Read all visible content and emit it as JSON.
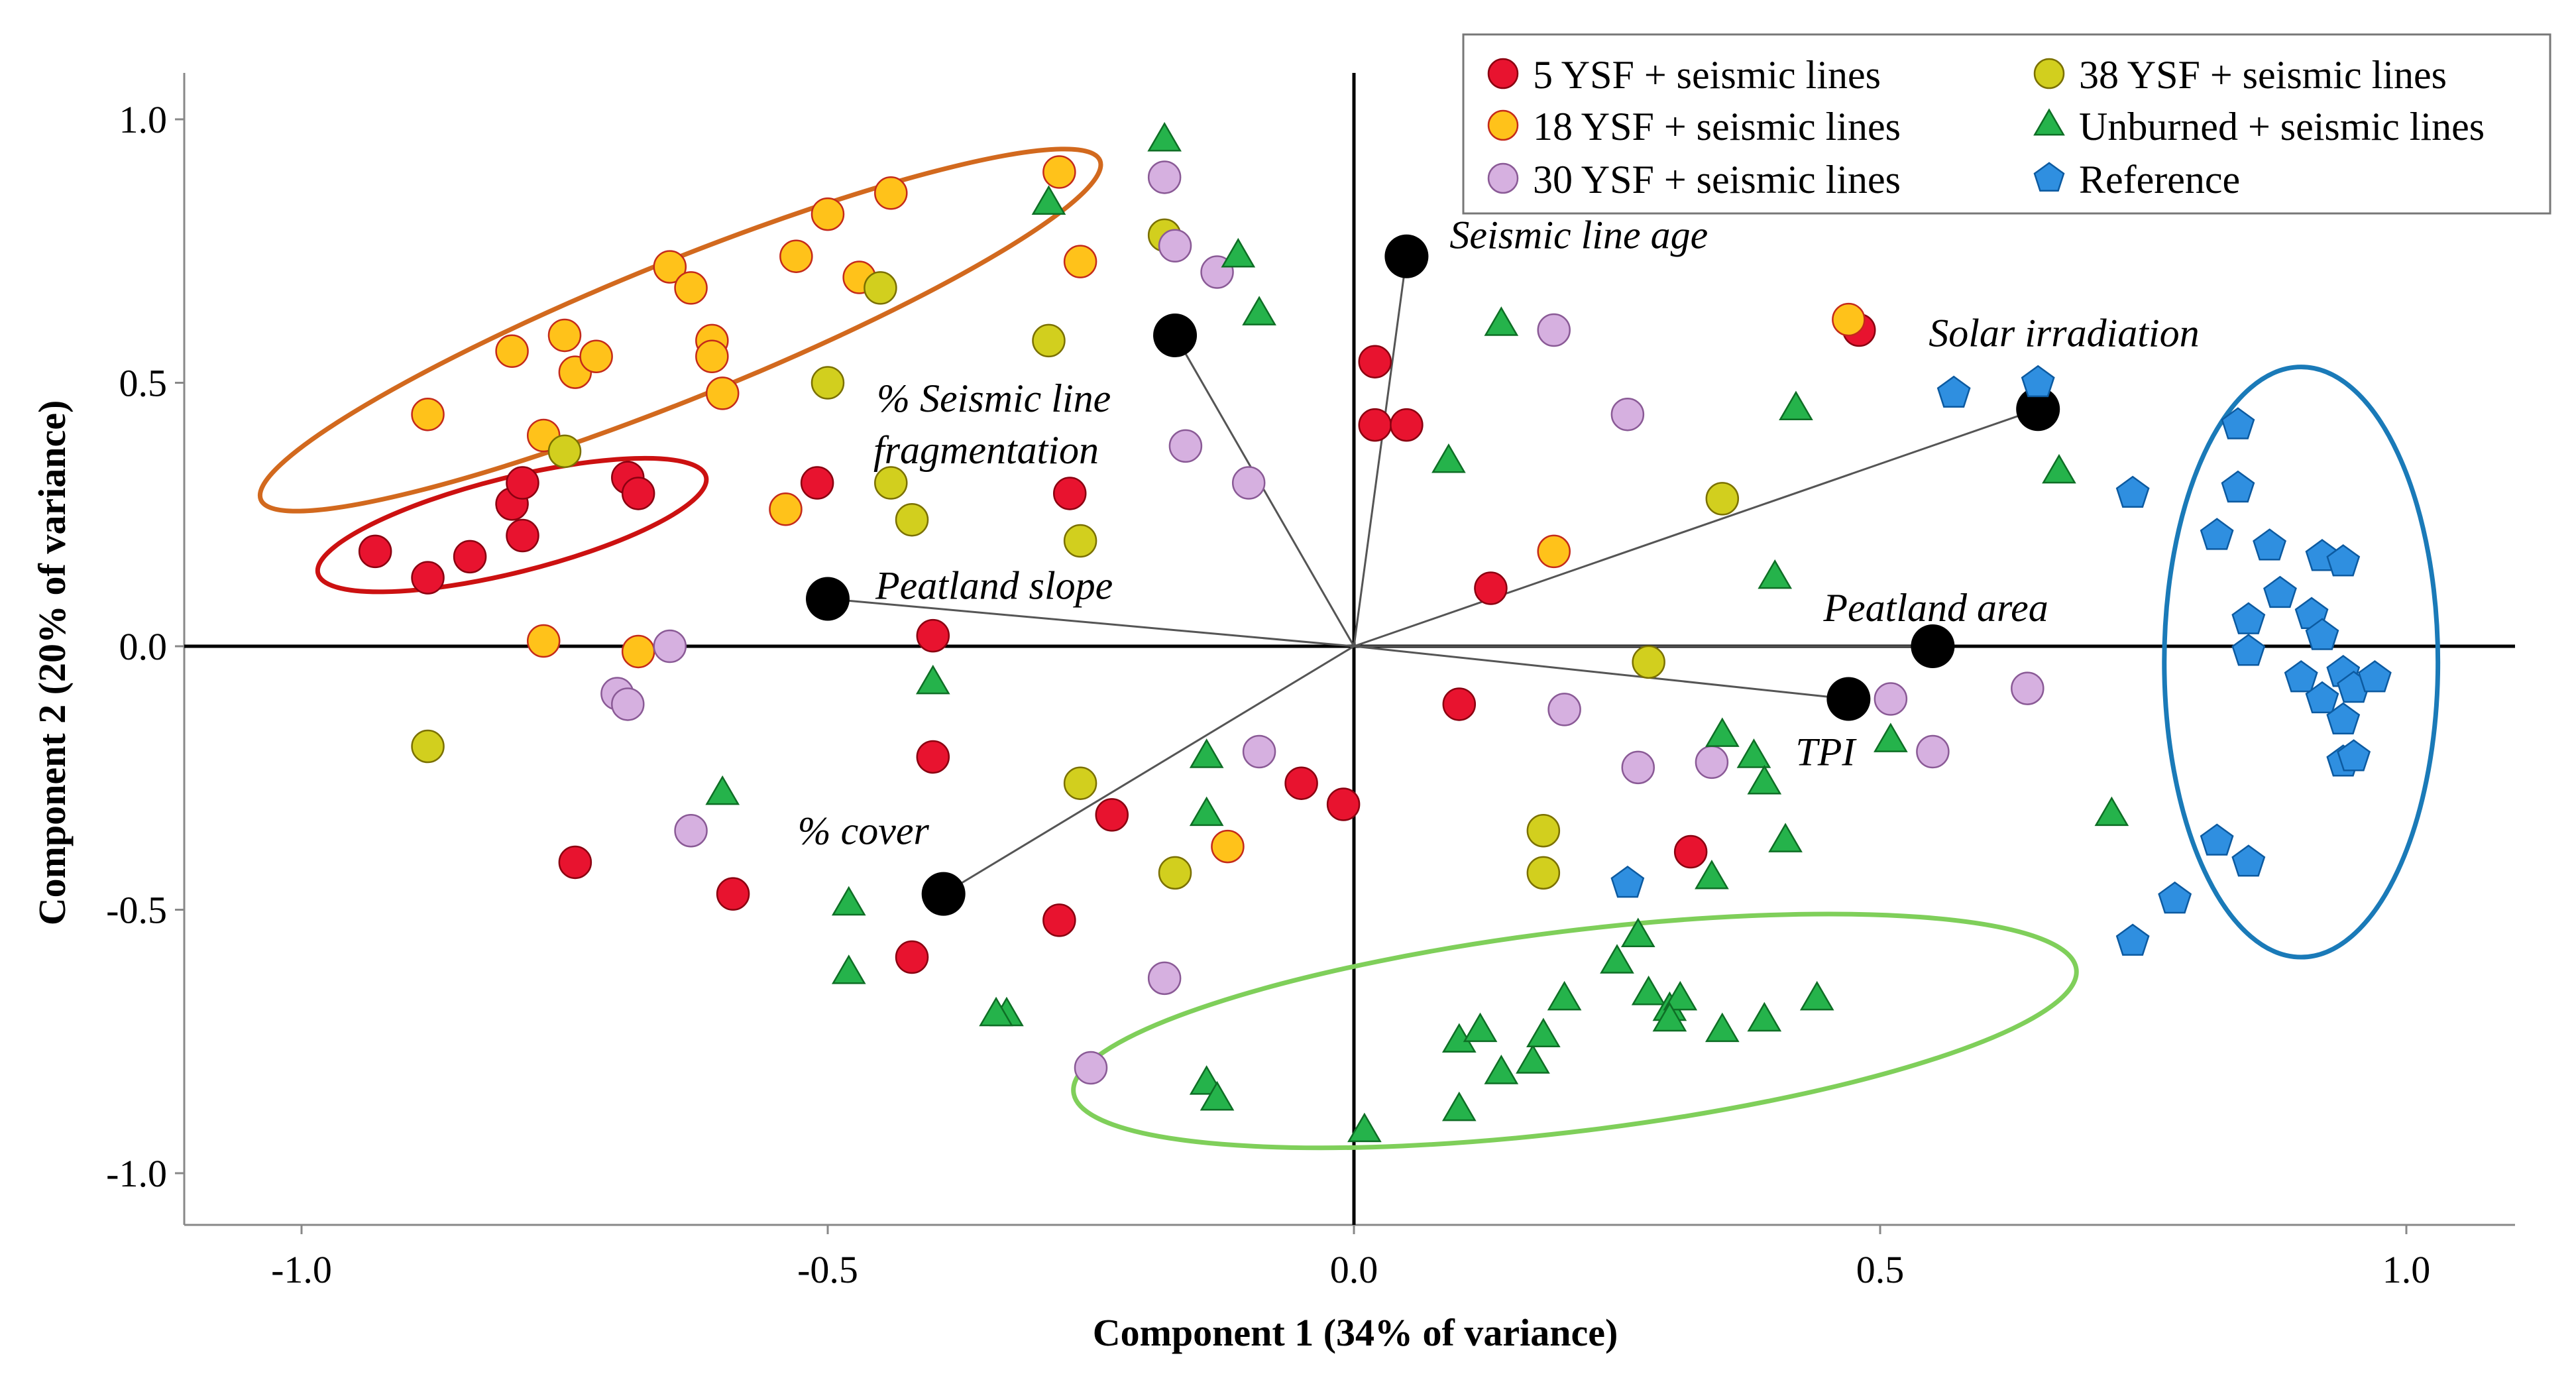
{
  "chart_data": {
    "type": "scatter",
    "title": "",
    "xlabel": "Component 1 (34% of variance)",
    "ylabel": "Component 2 (20% of variance)",
    "xlim": [
      -1.1,
      1.1
    ],
    "ylim": [
      -1.1,
      1.1
    ],
    "xticks": [
      -1.0,
      -0.5,
      0.0,
      0.5,
      1.0
    ],
    "yticks": [
      -1.0,
      -0.5,
      0.0,
      0.5,
      1.0
    ],
    "xtick_labels": [
      "-1.0",
      "-0.5",
      "0.0",
      "0.5",
      "1.0"
    ],
    "ytick_labels": [
      "-1.0",
      "-0.5",
      "0.0",
      "0.5",
      "1.0"
    ],
    "grid": false,
    "legend_position": "top-right",
    "series": [
      {
        "name": "5 YSF +  seismic lines",
        "marker": "circle",
        "color": "#e8132f",
        "edge": "#8a0010",
        "points": [
          [
            -0.93,
            0.18
          ],
          [
            -0.88,
            0.13
          ],
          [
            -0.84,
            0.17
          ],
          [
            -0.8,
            0.27
          ],
          [
            -0.79,
            0.31
          ],
          [
            -0.79,
            0.21
          ],
          [
            -0.69,
            0.32
          ],
          [
            -0.68,
            0.29
          ],
          [
            -0.74,
            -0.41
          ],
          [
            -0.59,
            -0.47
          ],
          [
            -0.51,
            0.31
          ],
          [
            -0.4,
            0.02
          ],
          [
            -0.4,
            -0.21
          ],
          [
            -0.42,
            -0.59
          ],
          [
            -0.27,
            0.29
          ],
          [
            -0.28,
            -0.52
          ],
          [
            -0.23,
            -0.32
          ],
          [
            -0.05,
            -0.26
          ],
          [
            -0.01,
            -0.3
          ],
          [
            0.02,
            0.54
          ],
          [
            0.02,
            0.42
          ],
          [
            0.05,
            0.42
          ],
          [
            0.13,
            0.11
          ],
          [
            0.1,
            -0.11
          ],
          [
            0.32,
            -0.39
          ],
          [
            0.48,
            0.6
          ]
        ]
      },
      {
        "name": "18 YSF + seismic lines",
        "marker": "circle",
        "color": "#ffc21a",
        "edge": "#c42a1a",
        "points": [
          [
            -0.88,
            0.44
          ],
          [
            -0.8,
            0.56
          ],
          [
            -0.75,
            0.59
          ],
          [
            -0.74,
            0.52
          ],
          [
            -0.72,
            0.55
          ],
          [
            -0.65,
            0.72
          ],
          [
            -0.63,
            0.68
          ],
          [
            -0.61,
            0.58
          ],
          [
            -0.61,
            0.55
          ],
          [
            -0.6,
            0.48
          ],
          [
            -0.53,
            0.74
          ],
          [
            -0.5,
            0.82
          ],
          [
            -0.47,
            0.7
          ],
          [
            -0.44,
            0.86
          ],
          [
            -0.77,
            0.4
          ],
          [
            -0.77,
            0.01
          ],
          [
            -0.68,
            -0.01
          ],
          [
            -0.54,
            0.26
          ],
          [
            -0.28,
            0.9
          ],
          [
            -0.26,
            0.73
          ],
          [
            -0.12,
            -0.38
          ],
          [
            0.19,
            0.18
          ],
          [
            0.47,
            0.62
          ]
        ]
      },
      {
        "name": "38 YSF + seismic lines",
        "marker": "circle",
        "color": "#d2cf1e",
        "edge": "#7a7000",
        "points": [
          [
            -0.88,
            -0.19
          ],
          [
            -0.75,
            0.37
          ],
          [
            -0.5,
            0.5
          ],
          [
            -0.45,
            0.68
          ],
          [
            -0.44,
            0.31
          ],
          [
            -0.42,
            0.24
          ],
          [
            -0.29,
            0.58
          ],
          [
            -0.26,
            0.2
          ],
          [
            -0.26,
            -0.26
          ],
          [
            -0.18,
            0.78
          ],
          [
            -0.17,
            -0.43
          ],
          [
            0.18,
            -0.35
          ],
          [
            0.18,
            -0.43
          ],
          [
            0.28,
            -0.03
          ],
          [
            0.35,
            0.28
          ]
        ]
      },
      {
        "name": "30 YSF + seismic lines",
        "marker": "circle",
        "color": "#d6b0e0",
        "edge": "#8a5a96",
        "points": [
          [
            -0.7,
            -0.09
          ],
          [
            -0.69,
            -0.11
          ],
          [
            -0.65,
            0.0
          ],
          [
            -0.63,
            -0.35
          ],
          [
            -0.18,
            0.89
          ],
          [
            -0.17,
            0.76
          ],
          [
            -0.13,
            0.71
          ],
          [
            -0.1,
            0.31
          ],
          [
            -0.16,
            0.38
          ],
          [
            -0.09,
            -0.2
          ],
          [
            -0.18,
            -0.63
          ],
          [
            -0.25,
            -0.8
          ],
          [
            0.19,
            0.6
          ],
          [
            0.2,
            -0.12
          ],
          [
            0.26,
            0.44
          ],
          [
            0.27,
            -0.23
          ],
          [
            0.34,
            -0.22
          ],
          [
            0.51,
            -0.1
          ],
          [
            0.55,
            -0.2
          ],
          [
            0.64,
            -0.08
          ]
        ]
      },
      {
        "name": "Unburned + seismic lines",
        "marker": "triangle",
        "color": "#25b34b",
        "edge": "#0e6e25",
        "points": [
          [
            -0.18,
            0.96
          ],
          [
            -0.29,
            0.84
          ],
          [
            -0.11,
            0.74
          ],
          [
            -0.09,
            0.63
          ],
          [
            0.14,
            0.61
          ],
          [
            0.09,
            0.35
          ],
          [
            0.42,
            0.45
          ],
          [
            0.67,
            0.33
          ],
          [
            0.4,
            0.13
          ],
          [
            0.51,
            -0.18
          ],
          [
            0.35,
            -0.17
          ],
          [
            0.38,
            -0.21
          ],
          [
            0.39,
            -0.26
          ],
          [
            0.41,
            -0.37
          ],
          [
            0.34,
            -0.44
          ],
          [
            0.72,
            -0.32
          ],
          [
            -0.4,
            -0.07
          ],
          [
            -0.6,
            -0.28
          ],
          [
            -0.48,
            -0.49
          ],
          [
            -0.48,
            -0.62
          ],
          [
            -0.33,
            -0.7
          ],
          [
            -0.34,
            -0.7
          ],
          [
            -0.14,
            -0.21
          ],
          [
            -0.14,
            -0.32
          ],
          [
            -0.14,
            -0.83
          ],
          [
            -0.13,
            -0.86
          ],
          [
            0.01,
            -0.92
          ],
          [
            0.1,
            -0.75
          ],
          [
            0.1,
            -0.88
          ],
          [
            0.12,
            -0.73
          ],
          [
            0.14,
            -0.81
          ],
          [
            0.17,
            -0.79
          ],
          [
            0.18,
            -0.74
          ],
          [
            0.2,
            -0.67
          ],
          [
            0.25,
            -0.6
          ],
          [
            0.27,
            -0.55
          ],
          [
            0.28,
            -0.66
          ],
          [
            0.3,
            -0.69
          ],
          [
            0.31,
            -0.67
          ],
          [
            0.3,
            -0.71
          ],
          [
            0.35,
            -0.73
          ],
          [
            0.39,
            -0.71
          ],
          [
            0.44,
            -0.67
          ]
        ]
      },
      {
        "name": "Reference",
        "marker": "pentagon",
        "color": "#2f8fe0",
        "edge": "#0c5aa0",
        "points": [
          [
            0.57,
            0.48
          ],
          [
            0.65,
            0.5
          ],
          [
            0.74,
            0.29
          ],
          [
            0.84,
            0.42
          ],
          [
            0.84,
            0.3
          ],
          [
            0.82,
            0.21
          ],
          [
            0.87,
            0.19
          ],
          [
            0.92,
            0.17
          ],
          [
            0.94,
            0.16
          ],
          [
            0.85,
            0.05
          ],
          [
            0.88,
            0.1
          ],
          [
            0.91,
            0.06
          ],
          [
            0.92,
            0.02
          ],
          [
            0.85,
            -0.01
          ],
          [
            0.9,
            -0.06
          ],
          [
            0.92,
            -0.1
          ],
          [
            0.94,
            -0.05
          ],
          [
            0.95,
            -0.08
          ],
          [
            0.97,
            -0.06
          ],
          [
            0.94,
            -0.14
          ],
          [
            0.94,
            -0.22
          ],
          [
            0.95,
            -0.21
          ],
          [
            0.82,
            -0.37
          ],
          [
            0.85,
            -0.41
          ],
          [
            0.78,
            -0.48
          ],
          [
            0.74,
            -0.56
          ],
          [
            0.26,
            -0.45
          ]
        ]
      }
    ],
    "vectors": [
      {
        "label": "Seismic line age",
        "x": 0.05,
        "y": 0.74
      },
      {
        "label": "Solar irradiation",
        "x": 0.65,
        "y": 0.45
      },
      {
        "label": "Peatland area",
        "x": 0.55,
        "y": 0.0
      },
      {
        "label": "TPI",
        "x": 0.47,
        "y": -0.1
      },
      {
        "label": "% Seismic line",
        "label2": "fragmentation",
        "x": -0.17,
        "y": 0.59
      },
      {
        "label": "Peatland slope",
        "x": -0.5,
        "y": 0.09
      },
      {
        "label": "% cover",
        "x": -0.39,
        "y": -0.47
      }
    ],
    "group_ellipses": [
      {
        "group": "18 YSF",
        "color": "#d2691e",
        "cx": -0.64,
        "cy": 0.6,
        "rx": 0.43,
        "ry": 0.13,
        "angle_deg": 22
      },
      {
        "group": "5 YSF",
        "color": "#cc1111",
        "cx": -0.8,
        "cy": 0.23,
        "rx": 0.19,
        "ry": 0.09,
        "angle_deg": 14
      },
      {
        "group": "Unburned",
        "color": "#7fcf5a",
        "cx": 0.21,
        "cy": -0.73,
        "rx": 0.48,
        "ry": 0.19,
        "angle_deg": 7
      },
      {
        "group": "Reference",
        "color": "#1a7ab8",
        "cx": 0.9,
        "cy": -0.03,
        "rx": 0.13,
        "ry": 0.56,
        "angle_deg": 0
      }
    ],
    "legend": [
      {
        "label": "5 YSF +  seismic lines",
        "marker": "circle",
        "color": "#e8132f",
        "edge": "#8a0010"
      },
      {
        "label": "18 YSF + seismic lines",
        "marker": "circle",
        "color": "#ffc21a",
        "edge": "#c42a1a"
      },
      {
        "label": "30 YSF + seismic lines",
        "marker": "circle",
        "color": "#d6b0e0",
        "edge": "#8a5a96"
      },
      {
        "label": "38 YSF + seismic lines",
        "marker": "circle",
        "color": "#d2cf1e",
        "edge": "#7a7000"
      },
      {
        "label": "Unburned + seismic lines",
        "marker": "triangle",
        "color": "#25b34b",
        "edge": "#0e6e25"
      },
      {
        "label": "Reference",
        "marker": "pentagon",
        "color": "#2f8fe0",
        "edge": "#0c5aa0"
      }
    ]
  }
}
